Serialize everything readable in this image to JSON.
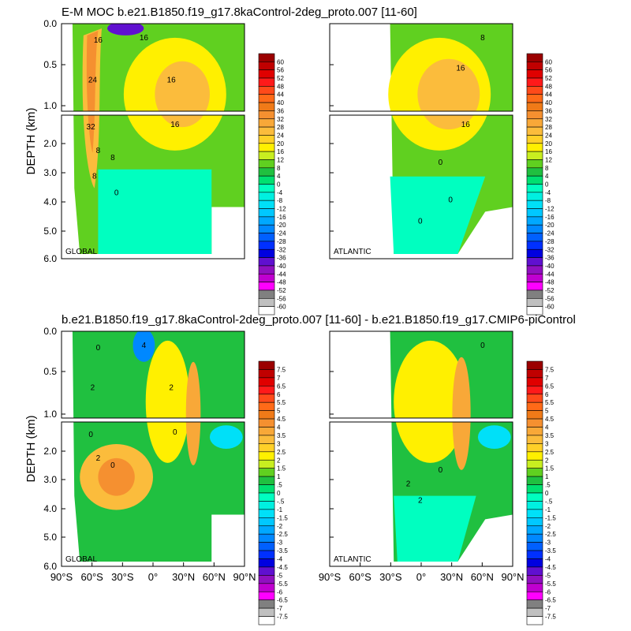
{
  "chart_data": [
    {
      "type": "heatmap",
      "title": "E-M MOC  b.e21.B1850.f19_g17.8kaControl-2deg_proto.007 [11-60]",
      "ylabel": "DEPTH (km)",
      "xlabel": "",
      "y_ticks": [
        "0.0",
        "0.5",
        "1.0",
        "2.0",
        "3.0",
        "4.0",
        "5.0",
        "6.0"
      ],
      "x_ticks": [],
      "panels": [
        {
          "label": "GLOBAL",
          "xlim": [
            -90,
            90
          ],
          "ylim": [
            0,
            6
          ]
        },
        {
          "label": "ATLANTIC",
          "xlim": [
            -90,
            90
          ],
          "ylim": [
            0,
            6
          ]
        }
      ],
      "colorbar": [
        "60",
        "56",
        "52",
        "48",
        "44",
        "40",
        "36",
        "32",
        "28",
        "24",
        "20",
        "16",
        "12",
        "8",
        "4",
        "0",
        "-4",
        "-8",
        "-12",
        "-16",
        "-20",
        "-24",
        "-28",
        "-32",
        "-36",
        "-40",
        "-44",
        "-48",
        "-52",
        "-56",
        "-60"
      ],
      "contour_labels": [
        "16",
        "24",
        "32",
        "8",
        "16",
        "16",
        "8",
        "16",
        "0",
        "8",
        "0",
        "8",
        "16",
        "16",
        "0",
        "0"
      ]
    },
    {
      "type": "heatmap",
      "title": "b.e21.B1850.f19_g17.8kaControl-2deg_proto.007 [11-60] - b.e21.B1850.f19_g17.CMIP6-piControl",
      "ylabel": "DEPTH (km)",
      "xlabel": "",
      "y_ticks": [
        "0.0",
        "0.5",
        "1.0",
        "2.0",
        "3.0",
        "4.0",
        "5.0",
        "6.0"
      ],
      "x_ticks": [
        "90°S",
        "60°S",
        "30°S",
        "0°",
        "30°N",
        "60°N",
        "90°N"
      ],
      "panels": [
        {
          "label": "GLOBAL",
          "xlim": [
            -90,
            90
          ],
          "ylim": [
            0,
            6
          ]
        },
        {
          "label": "ATLANTIC",
          "xlim": [
            -90,
            90
          ],
          "ylim": [
            0,
            6
          ]
        }
      ],
      "colorbar": [
        "7.5",
        "7",
        "6.5",
        "6",
        "5.5",
        "5",
        "4.5",
        "4",
        "3.5",
        "3",
        "2.5",
        "2",
        "1.5",
        "1",
        ".5",
        "0",
        "-.5",
        "-1",
        "-1.5",
        "-2",
        "-2.5",
        "-3",
        "-3.5",
        "-4",
        "-4.5",
        "-5",
        "-5.5",
        "-6",
        "-6.5",
        "-7",
        "-7.5"
      ],
      "contour_labels": [
        "0",
        "2",
        "0",
        "2",
        "4",
        "2",
        "0",
        "0",
        "2",
        "2",
        "0",
        "0"
      ]
    }
  ],
  "palette": [
    "#9b0000",
    "#c00000",
    "#e00000",
    "#ff1a1a",
    "#ff4a1a",
    "#ff6a18",
    "#f07a18",
    "#f59030",
    "#f8a838",
    "#fbbc3c",
    "#ffd028",
    "#fff000",
    "#c8ee20",
    "#60d020",
    "#20c040",
    "#00e070",
    "#00ffc0",
    "#00f0e0",
    "#00e0f8",
    "#00c8ff",
    "#00a8ff",
    "#0088ff",
    "#0060ff",
    "#0030ff",
    "#0000e0",
    "#6010d0",
    "#9010c0",
    "#c000d0",
    "#ff00ff",
    "#808080",
    "#c0c0c0",
    "#ffffff"
  ]
}
